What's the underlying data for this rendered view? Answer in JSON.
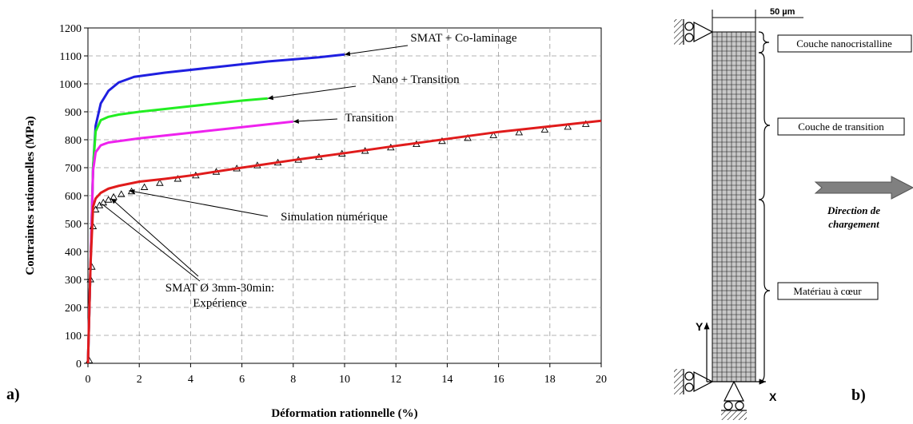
{
  "panel_a_label": "a)",
  "panel_b_label": "b)",
  "chart_data": {
    "type": "line",
    "xlabel": "Déformation rationnelle (%)",
    "ylabel": "Contraintes rationnelles (MPa)",
    "xlim": [
      0,
      20
    ],
    "ylim": [
      0,
      1200
    ],
    "xticks": [
      0,
      2,
      4,
      6,
      8,
      10,
      12,
      14,
      16,
      18,
      20
    ],
    "yticks": [
      0,
      100,
      200,
      300,
      400,
      500,
      600,
      700,
      800,
      900,
      1000,
      1100,
      1200
    ],
    "grid": true,
    "series": [
      {
        "name": "SMAT + Co-laminage",
        "color": "#1f1fe0",
        "x": [
          0,
          0.1,
          0.2,
          0.3,
          0.5,
          0.8,
          1.2,
          1.8,
          3,
          5,
          7,
          9,
          10
        ],
        "y": [
          0,
          350,
          700,
          850,
          930,
          975,
          1005,
          1025,
          1040,
          1060,
          1080,
          1095,
          1105
        ]
      },
      {
        "name": "Nano + Transition",
        "color": "#22ee22",
        "x": [
          0,
          0.1,
          0.2,
          0.3,
          0.5,
          0.8,
          1.2,
          2,
          4,
          6,
          7
        ],
        "y": [
          0,
          350,
          700,
          830,
          870,
          882,
          890,
          900,
          920,
          940,
          948
        ]
      },
      {
        "name": "Transition",
        "color": "#ee22ee",
        "x": [
          0,
          0.1,
          0.2,
          0.3,
          0.5,
          0.8,
          1.2,
          2,
          4,
          6,
          8
        ],
        "y": [
          0,
          350,
          690,
          755,
          780,
          790,
          795,
          805,
          825,
          845,
          865
        ]
      },
      {
        "name": "Simulation numérique",
        "color": "#e01b1b",
        "x": [
          0,
          0.1,
          0.2,
          0.3,
          0.5,
          0.8,
          1.2,
          2,
          3,
          4,
          6,
          8,
          10,
          12,
          14,
          16,
          18,
          20
        ],
        "y": [
          0,
          350,
          560,
          590,
          610,
          625,
          635,
          650,
          660,
          672,
          700,
          727,
          752,
          778,
          803,
          828,
          848,
          868
        ]
      },
      {
        "name": "SMAT Ø 3mm-30min: Expérience",
        "color": "#000000",
        "marker": "triangle",
        "x": [
          0.05,
          0.1,
          0.15,
          0.2,
          0.3,
          0.45,
          0.6,
          0.8,
          1.0,
          1.3,
          1.7,
          2.2,
          2.8,
          3.5,
          4.2,
          5.0,
          5.8,
          6.6,
          7.4,
          8.2,
          9.0,
          9.9,
          10.8,
          11.8,
          12.8,
          13.8,
          14.8,
          15.8,
          16.8,
          17.8,
          18.7,
          19.4
        ],
        "y": [
          10,
          300,
          345,
          490,
          550,
          565,
          575,
          585,
          595,
          605,
          615,
          630,
          645,
          660,
          672,
          685,
          697,
          708,
          718,
          728,
          738,
          750,
          760,
          772,
          784,
          795,
          806,
          816,
          826,
          836,
          846,
          856
        ]
      }
    ],
    "annotations": [
      {
        "text": "SMAT + Co-laminage",
        "target": [
          10,
          1105
        ]
      },
      {
        "text": "Nano + Transition",
        "target": [
          7,
          948
        ]
      },
      {
        "text": "Transition",
        "target": [
          8,
          865
        ]
      },
      {
        "text": "Simulation numérique",
        "target": [
          1.6,
          618
        ]
      },
      {
        "text": "SMAT Ø 3mm-30min:",
        "text2": "Expérience",
        "target": [
          0.9,
          590
        ]
      }
    ]
  },
  "diagram": {
    "dimension_label": "50 µm",
    "layer_labels": [
      "Couche nanocristalline",
      "Couche de transition",
      "Matériau à cœur"
    ],
    "direction_label_line1": "Direction de",
    "direction_label_line2": "chargement",
    "axis_y": "Y",
    "axis_x": "X",
    "arrow_color": "#808080"
  }
}
